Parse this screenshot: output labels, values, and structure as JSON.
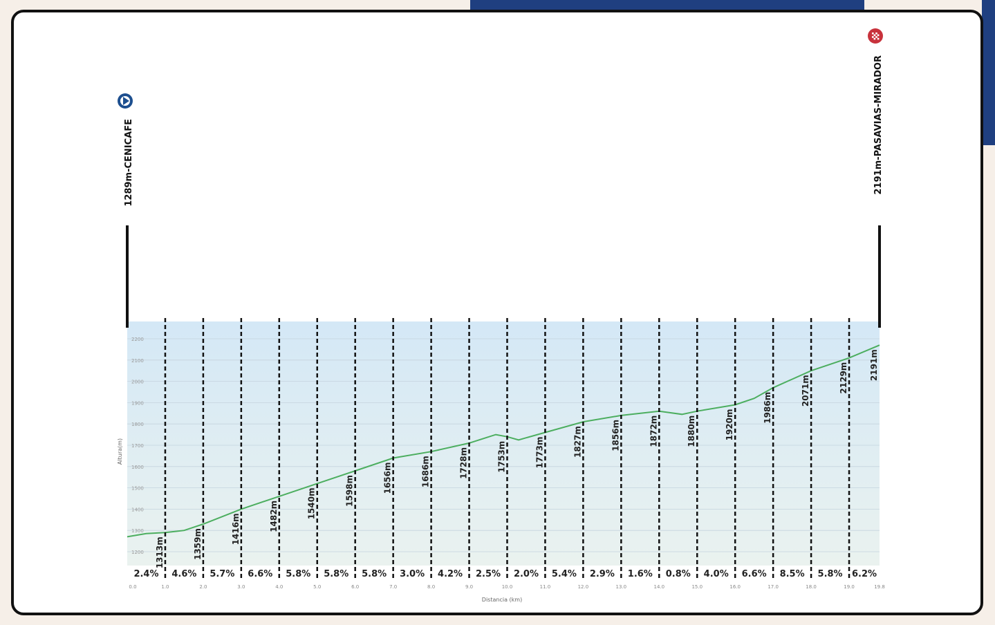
{
  "chart_data": {
    "type": "area",
    "ylabel": "Altura(m)",
    "xlabel": "Distancia (km)",
    "ylim": [
      1200,
      2200
    ],
    "xlim": [
      0,
      19.8
    ],
    "y_ticks": [
      1200,
      1300,
      1400,
      1500,
      1600,
      1700,
      1800,
      1900,
      2000,
      2100,
      2200
    ],
    "x_ticks": [
      "0.0",
      "1.0",
      "2.0",
      "3.0",
      "4.0",
      "5.0",
      "6.0",
      "7.0",
      "8.0",
      "9.0",
      "10.0",
      "11.0",
      "12.0",
      "13.0",
      "14.0",
      "15.0",
      "16.0",
      "17.0",
      "18.0",
      "19.0",
      "19.8"
    ],
    "x_tick_values": [
      0,
      1,
      2,
      3,
      4,
      5,
      6,
      7,
      8,
      9,
      10,
      11,
      12,
      13,
      14,
      15,
      16,
      17,
      18,
      19,
      19.8
    ],
    "profile": {
      "x": [
        0,
        0.5,
        1,
        1.5,
        2,
        3,
        4,
        5,
        6,
        7,
        8,
        9,
        9.7,
        10,
        10.3,
        11,
        12,
        13,
        14,
        14.6,
        15,
        16,
        16.5,
        17,
        18,
        19,
        19.8
      ],
      "y": [
        1270,
        1285,
        1290,
        1300,
        1330,
        1400,
        1460,
        1520,
        1580,
        1640,
        1670,
        1710,
        1750,
        1740,
        1725,
        1760,
        1810,
        1840,
        1860,
        1845,
        1860,
        1890,
        1920,
        1970,
        2050,
        2110,
        2170
      ]
    },
    "segments": {
      "boundaries_km": [
        1,
        2,
        3,
        4,
        5,
        6,
        7,
        8,
        9,
        10,
        11,
        12,
        13,
        14,
        15,
        16,
        17,
        18,
        19
      ],
      "altitude_labels": [
        "1313m",
        "1359m",
        "1416m",
        "1482m",
        "1540m",
        "1598m",
        "1656m",
        "1686m",
        "1728m",
        "1753m",
        "1773m",
        "1827m",
        "1856m",
        "1872m",
        "1880m",
        "1920m",
        "1986m",
        "2071m",
        "2129m",
        "2191m"
      ],
      "gradients": [
        "2.4%",
        "4.6%",
        "5.7%",
        "6.6%",
        "5.8%",
        "5.8%",
        "5.8%",
        "3.0%",
        "4.2%",
        "2.5%",
        "2.0%",
        "5.4%",
        "2.9%",
        "1.6%",
        "0.8%",
        "4.0%",
        "6.6%",
        "8.5%",
        "5.8%",
        "6.2%"
      ]
    },
    "start": {
      "label": "1289m-CENICAFE",
      "icon": "play-icon"
    },
    "finish": {
      "label": "2191m-PASAVIAS-MIRADOR",
      "icon": "checkered-flag-icon"
    },
    "colors": {
      "line": "#4cae5f",
      "area_top": "#d4e8f6",
      "area_bottom": "#eaf2ef",
      "start_icon": "#1d4f8f",
      "finish_icon": "#c8323c"
    }
  }
}
